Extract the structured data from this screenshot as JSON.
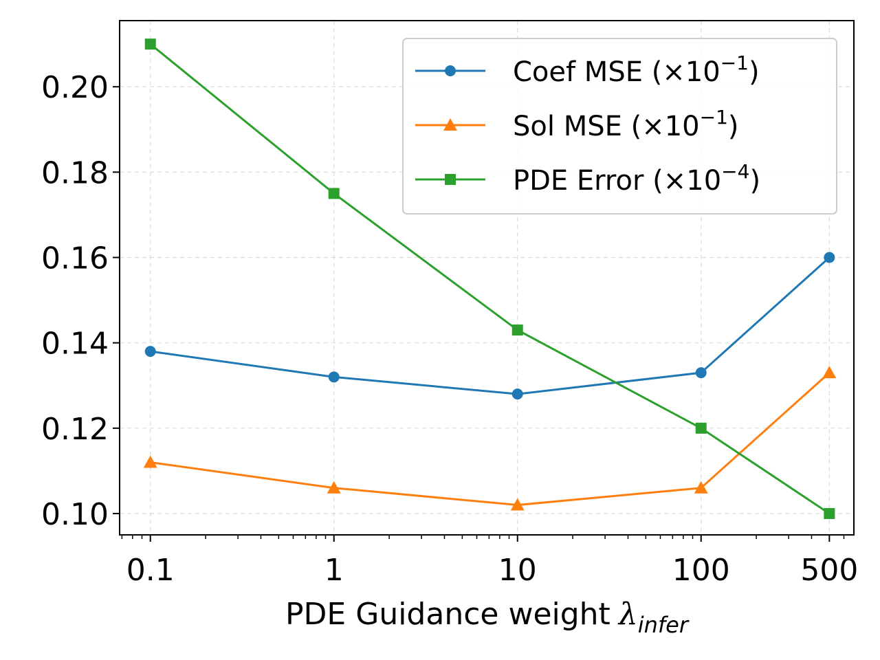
{
  "chart_data": {
    "type": "line",
    "xlabel": "PDE Guidance weight",
    "xlabel_symbol": "λ",
    "xlabel_subscript": "infer",
    "ylabel": "",
    "x_scale": "log",
    "x": [
      0.1,
      1,
      10,
      100,
      500
    ],
    "x_tick_labels": [
      "0.1",
      "1",
      "10",
      "100",
      "500"
    ],
    "y_ticks": [
      0.1,
      0.12,
      0.14,
      0.16,
      0.18,
      0.2
    ],
    "y_tick_labels": [
      "0.10",
      "0.12",
      "0.14",
      "0.16",
      "0.18",
      "0.20"
    ],
    "ylim": [
      0.095,
      0.2155
    ],
    "xlim": [
      0.068,
      680
    ],
    "grid": true,
    "legend_position": "top-right",
    "series": [
      {
        "name": "Coef MSE (×10",
        "exponent": "−1",
        "suffix": ")",
        "marker": "circle",
        "color": "#1f77b4",
        "values": [
          0.138,
          0.132,
          0.128,
          0.133,
          0.16
        ]
      },
      {
        "name": "Sol MSE (×10",
        "exponent": "−1",
        "suffix": ")",
        "marker": "triangle",
        "color": "#ff7f0e",
        "values": [
          0.112,
          0.106,
          0.102,
          0.106,
          0.133
        ]
      },
      {
        "name": "PDE Error (×10",
        "exponent": "−4",
        "suffix": ")",
        "marker": "square",
        "color": "#2ca02c",
        "values": [
          0.21,
          0.175,
          0.143,
          0.12,
          0.1
        ]
      }
    ]
  }
}
